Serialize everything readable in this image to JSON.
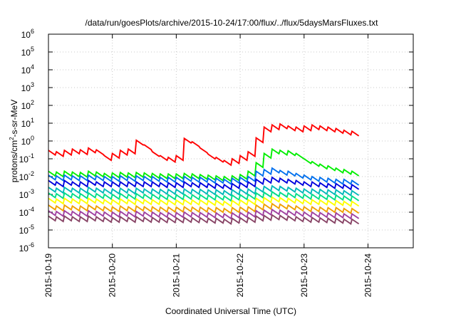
{
  "chart_data": {
    "type": "line",
    "title": "/data/run/goesPlots/archive/2015-10-24/17:00/flux/../flux/5daysMarsFluxes.txt",
    "xlabel": "Coordinated Universal Time (UTC)",
    "ylabel": "protons/cm2-s-sr-MeV",
    "ylabel_base": "protons/cm",
    "ylabel_sup": "2",
    "ylabel_rest": "-s-sr-MeV",
    "xlim": [
      "2015-10-19",
      "2015-10-24T17:00"
    ],
    "ylim": [
      1e-06,
      1000000.0
    ],
    "yscale": "log",
    "x_ticks": [
      "2015-10-19",
      "2015-10-20",
      "2015-10-21",
      "2015-10-22",
      "2015-10-23",
      "2015-10-24"
    ],
    "y_ticks": [
      {
        "base": "10",
        "exp": "-6"
      },
      {
        "base": "10",
        "exp": "-5"
      },
      {
        "base": "10",
        "exp": "-4"
      },
      {
        "base": "10",
        "exp": "-3"
      },
      {
        "base": "10",
        "exp": "-2"
      },
      {
        "base": "10",
        "exp": "-1"
      },
      {
        "base": "10",
        "exp": "0"
      },
      {
        "base": "10",
        "exp": "1"
      },
      {
        "base": "10",
        "exp": "2"
      },
      {
        "base": "10",
        "exp": "3"
      },
      {
        "base": "10",
        "exp": "4"
      },
      {
        "base": "10",
        "exp": "5"
      },
      {
        "base": "10",
        "exp": "6"
      }
    ],
    "grid": true,
    "series_colors": [
      "#ff0000",
      "#00ee00",
      "#0070ee",
      "#0000dd",
      "#00b8b8",
      "#00dd88",
      "#ffff00",
      "#f0a000",
      "#a040a0",
      "#884466"
    ],
    "series": [
      {
        "color": "#ff0000",
        "values": [
          0.3,
          0.25,
          0.3,
          0.35,
          0.32,
          0.4,
          0.32,
          0.15,
          0.2,
          0.3,
          0.35,
          1.1,
          0.6,
          0.25,
          0.15,
          0.12,
          0.15,
          1.4,
          0.9,
          0.4,
          0.18,
          0.12,
          0.08,
          0.1,
          0.15,
          0.25,
          1.5,
          6,
          8,
          9,
          7,
          6,
          7,
          8,
          7,
          6,
          5,
          4,
          3.5
        ]
      },
      {
        "color": "#00ee00",
        "values": [
          0.02,
          0.018,
          0.02,
          0.018,
          0.017,
          0.02,
          0.018,
          0.015,
          0.016,
          0.017,
          0.016,
          0.017,
          0.016,
          0.015,
          0.014,
          0.014,
          0.014,
          0.015,
          0.014,
          0.013,
          0.012,
          0.011,
          0.01,
          0.011,
          0.013,
          0.02,
          0.06,
          0.2,
          0.35,
          0.3,
          0.28,
          0.2,
          0.1,
          0.07,
          0.05,
          0.04,
          0.03,
          0.025,
          0.02
        ]
      },
      {
        "color": "#0070ee",
        "values": [
          0.012,
          0.011,
          0.012,
          0.011,
          0.011,
          0.012,
          0.011,
          0.01,
          0.01,
          0.011,
          0.01,
          0.011,
          0.01,
          0.01,
          0.009,
          0.009,
          0.009,
          0.01,
          0.009,
          0.009,
          0.008,
          0.008,
          0.007,
          0.008,
          0.009,
          0.01,
          0.02,
          0.025,
          0.03,
          0.022,
          0.02,
          0.015,
          0.012,
          0.01,
          0.009,
          0.008,
          0.007,
          0.007,
          0.006
        ]
      },
      {
        "color": "#0000dd",
        "values": [
          0.006,
          0.005,
          0.006,
          0.005,
          0.005,
          0.006,
          0.005,
          0.005,
          0.005,
          0.005,
          0.005,
          0.005,
          0.005,
          0.005,
          0.0045,
          0.0045,
          0.0045,
          0.005,
          0.0045,
          0.0045,
          0.004,
          0.004,
          0.0035,
          0.004,
          0.0045,
          0.005,
          0.007,
          0.008,
          0.009,
          0.008,
          0.007,
          0.006,
          0.005,
          0.005,
          0.0045,
          0.004,
          0.004,
          0.0035,
          0.0035
        ]
      },
      {
        "color": "#00b8b8",
        "values": [
          0.0025,
          0.0022,
          0.0025,
          0.0022,
          0.0022,
          0.0025,
          0.0022,
          0.002,
          0.002,
          0.0022,
          0.002,
          0.0022,
          0.002,
          0.002,
          0.0019,
          0.0019,
          0.0019,
          0.002,
          0.0019,
          0.0019,
          0.0018,
          0.0018,
          0.0016,
          0.0018,
          0.0019,
          0.002,
          0.0025,
          0.0028,
          0.003,
          0.0028,
          0.0025,
          0.0022,
          0.002,
          0.002,
          0.0019,
          0.0018,
          0.0018,
          0.0016,
          0.0016
        ]
      },
      {
        "color": "#00dd88",
        "values": [
          0.0012,
          0.0011,
          0.0012,
          0.0011,
          0.0011,
          0.0012,
          0.0011,
          0.001,
          0.001,
          0.0011,
          0.001,
          0.0011,
          0.001,
          0.001,
          0.00095,
          0.00095,
          0.00095,
          0.001,
          0.00095,
          0.00095,
          0.0009,
          0.0009,
          0.0008,
          0.0009,
          0.00095,
          0.001,
          0.0012,
          0.0013,
          0.0014,
          0.0013,
          0.0012,
          0.0011,
          0.001,
          0.001,
          0.00095,
          0.0009,
          0.0009,
          0.0008,
          0.0008
        ]
      },
      {
        "color": "#ffff00",
        "values": [
          0.0006,
          0.00055,
          0.0006,
          0.00055,
          0.00055,
          0.0006,
          0.00055,
          0.0005,
          0.0005,
          0.00055,
          0.0005,
          0.00055,
          0.0005,
          0.0005,
          0.00048,
          0.00048,
          0.00048,
          0.0005,
          0.00048,
          0.00048,
          0.00045,
          0.00045,
          0.0004,
          0.00045,
          0.00048,
          0.0005,
          0.0006,
          0.00065,
          0.0007,
          0.00065,
          0.0006,
          0.00055,
          0.0005,
          0.0005,
          0.00048,
          0.00045,
          0.00045,
          0.0004,
          0.0004
        ]
      },
      {
        "color": "#f0a000",
        "values": [
          0.00025,
          0.00022,
          0.00025,
          0.00022,
          0.00022,
          0.00025,
          0.00022,
          0.0002,
          0.0002,
          0.00022,
          0.0002,
          0.00022,
          0.0002,
          0.0002,
          0.00019,
          0.00019,
          0.00019,
          0.0002,
          0.00019,
          0.00019,
          0.00018,
          0.00018,
          0.00016,
          0.00018,
          0.00019,
          0.0002,
          0.00025,
          0.00028,
          0.0003,
          0.00028,
          0.00025,
          0.00022,
          0.0002,
          0.0002,
          0.00019,
          0.00018,
          0.00018,
          0.00016,
          0.00016
        ]
      },
      {
        "color": "#a040a0",
        "values": [
          0.00012,
          0.00011,
          0.00012,
          0.00011,
          0.00011,
          0.00012,
          0.00011,
          0.0001,
          0.0001,
          0.00011,
          0.0001,
          0.00011,
          0.0001,
          0.0001,
          9.5e-05,
          9.5e-05,
          9.5e-05,
          0.0001,
          9.5e-05,
          9.5e-05,
          9e-05,
          9e-05,
          8e-05,
          9e-05,
          9.5e-05,
          0.0001,
          0.00012,
          0.00013,
          0.00014,
          0.00013,
          0.00012,
          0.00011,
          0.0001,
          0.0001,
          9.5e-05,
          9e-05,
          9e-05,
          8e-05,
          8e-05
        ]
      },
      {
        "color": "#884466",
        "values": [
          6e-05,
          5.5e-05,
          6e-05,
          5.5e-05,
          5.5e-05,
          6e-05,
          5.5e-05,
          5e-05,
          5e-05,
          5.5e-05,
          5e-05,
          5.5e-05,
          5e-05,
          5e-05,
          4.8e-05,
          4.8e-05,
          4.8e-05,
          5e-05,
          4.8e-05,
          4.8e-05,
          4.5e-05,
          4.5e-05,
          4e-05,
          4.5e-05,
          4.8e-05,
          5e-05,
          6e-05,
          6.5e-05,
          7e-05,
          6.5e-05,
          6e-05,
          5.5e-05,
          5e-05,
          5e-05,
          4.8e-05,
          4.5e-05,
          4.5e-05,
          4e-05,
          4e-05
        ]
      }
    ],
    "x_step_hours": 3
  }
}
